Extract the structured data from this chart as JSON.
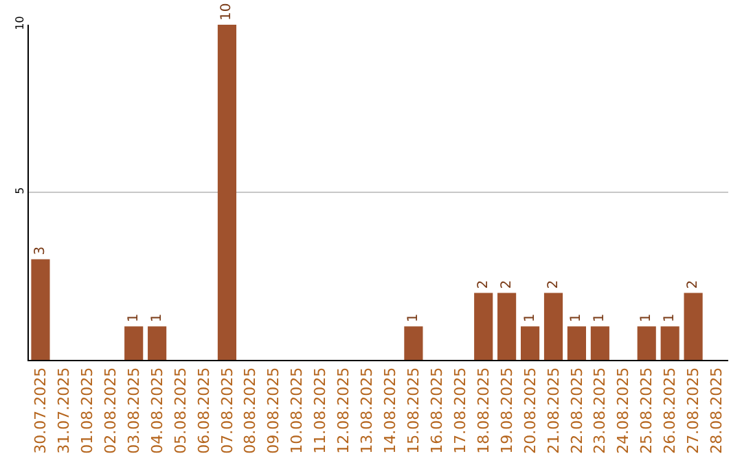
{
  "chart_data": {
    "type": "bar",
    "categories": [
      "30.07.2025",
      "31.07.2025",
      "01.08.2025",
      "02.08.2025",
      "03.08.2025",
      "04.08.2025",
      "05.08.2025",
      "06.08.2025",
      "07.08.2025",
      "08.08.2025",
      "09.08.2025",
      "10.08.2025",
      "11.08.2025",
      "12.08.2025",
      "13.08.2025",
      "14.08.2025",
      "15.08.2025",
      "16.08.2025",
      "17.08.2025",
      "18.08.2025",
      "19.08.2025",
      "20.08.2025",
      "21.08.2025",
      "22.08.2025",
      "23.08.2025",
      "24.08.2025",
      "25.08.2025",
      "26.08.2025",
      "27.08.2025",
      "28.08.2025"
    ],
    "values": [
      3,
      0,
      0,
      0,
      1,
      1,
      0,
      0,
      10,
      0,
      0,
      0,
      0,
      0,
      0,
      0,
      1,
      0,
      0,
      2,
      2,
      1,
      2,
      1,
      1,
      0,
      1,
      1,
      2,
      0
    ],
    "value_labels": [
      "3",
      null,
      null,
      null,
      "1",
      "1",
      null,
      null,
      "10",
      null,
      null,
      null,
      null,
      null,
      null,
      null,
      "1",
      null,
      null,
      "2",
      "2",
      "1",
      "2",
      "1",
      "1",
      null,
      "1",
      "1",
      "2",
      null
    ],
    "color": "#a0522d",
    "ylim": [
      0,
      10
    ],
    "yticks": [
      5,
      10
    ],
    "grid": "y"
  }
}
